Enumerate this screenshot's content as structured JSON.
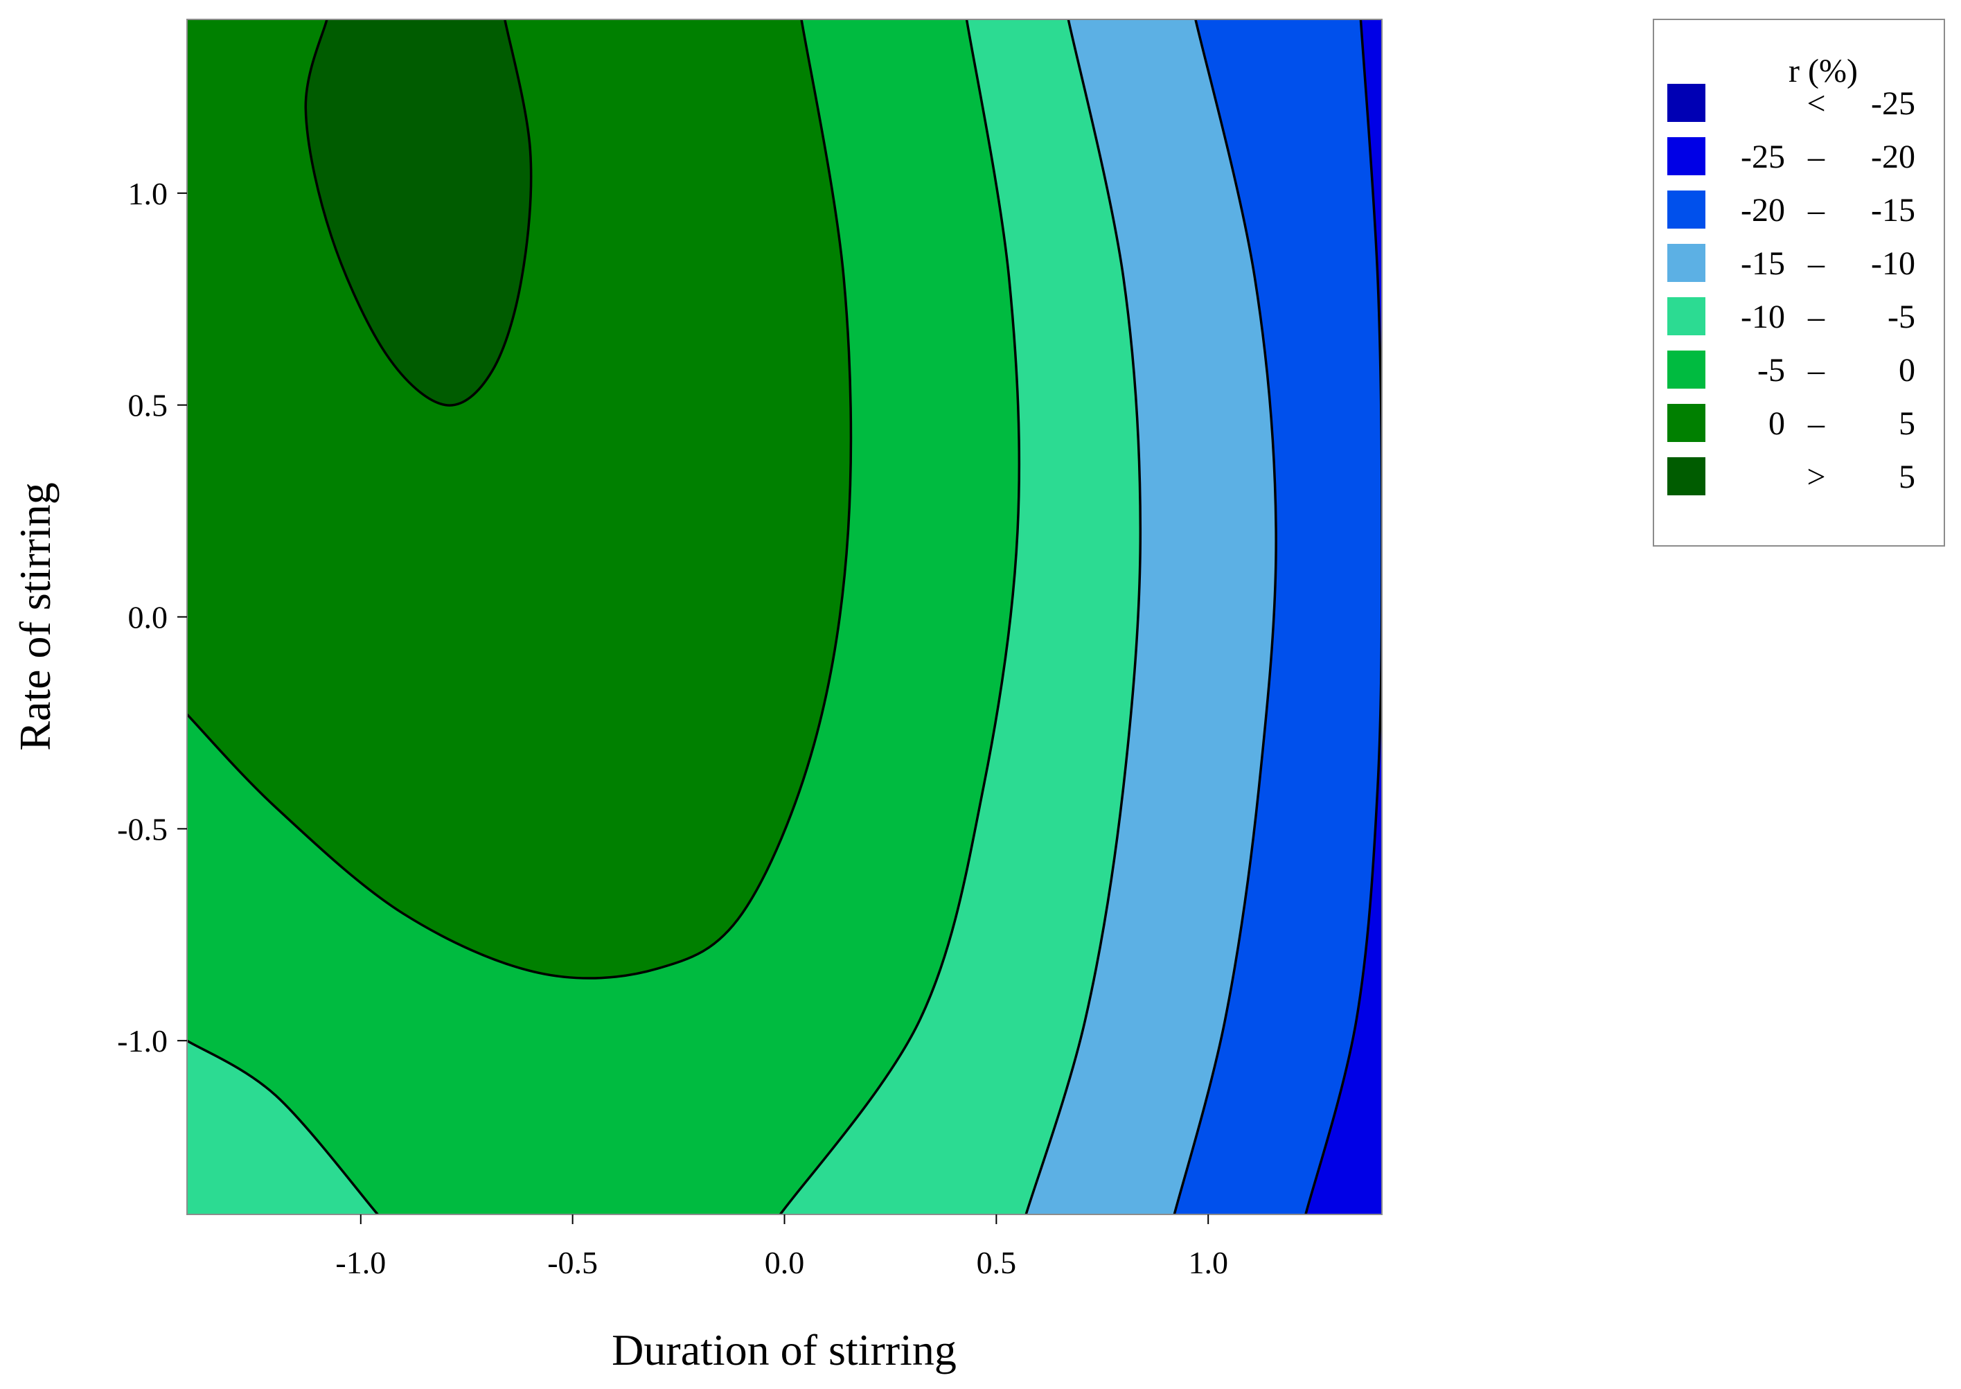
{
  "chart_data": {
    "type": "contour",
    "title": "",
    "xlabel": "Duration of stirring",
    "ylabel": "Rate of stirring",
    "xlim": [
      -1.41,
      1.41
    ],
    "ylim": [
      -1.41,
      1.41
    ],
    "xticks": [
      "-1.0",
      "-0.5",
      "0.0",
      "0.5",
      "1.0"
    ],
    "xtick_values": [
      -1.0,
      -0.5,
      0.0,
      0.5,
      1.0
    ],
    "yticks": [
      "-1.0",
      "-0.5",
      "0.0",
      "0.5",
      "1.0"
    ],
    "ytick_values": [
      -1.0,
      -0.5,
      0.0,
      0.5,
      1.0
    ],
    "legend": {
      "title": "r (%)",
      "placement": "top-right",
      "entries": [
        {
          "label": "<",
          "low": "",
          "high": "-25",
          "color": "#0000b4"
        },
        {
          "label": "–",
          "low": "-25",
          "high": "-20",
          "color": "#0000e6"
        },
        {
          "label": "–",
          "low": "-20",
          "high": "-15",
          "color": "#0050ec"
        },
        {
          "label": "–",
          "low": "-15",
          "high": "-10",
          "color": "#5cb0e4"
        },
        {
          "label": "–",
          "low": "-10",
          "high": "-5",
          "color": "#2cdb92"
        },
        {
          "label": "–",
          "low": "-5",
          "high": "0",
          "color": "#00bb40"
        },
        {
          "label": "–",
          "low": "0",
          "high": "5",
          "color": "#008000"
        },
        {
          "label": ">",
          "low": "",
          "high": "5",
          "color": "#005c00"
        }
      ]
    },
    "contour_levels": [
      -25,
      -20,
      -15,
      -10,
      -5,
      0,
      5
    ],
    "level_curves": [
      {
        "level": -20,
        "points": [
          [
            1.36,
            1.41
          ],
          [
            1.4,
            0.8
          ],
          [
            1.41,
            0.2
          ],
          [
            1.4,
            -0.4
          ],
          [
            1.35,
            -0.95
          ],
          [
            1.23,
            -1.41
          ]
        ]
      },
      {
        "level": -15,
        "points": [
          [
            0.97,
            1.41
          ],
          [
            1.11,
            0.8
          ],
          [
            1.16,
            0.2
          ],
          [
            1.12,
            -0.4
          ],
          [
            1.04,
            -0.95
          ],
          [
            0.92,
            -1.41
          ]
        ]
      },
      {
        "level": -10,
        "points": [
          [
            0.67,
            1.41
          ],
          [
            0.8,
            0.8
          ],
          [
            0.84,
            0.2
          ],
          [
            0.8,
            -0.4
          ],
          [
            0.71,
            -0.95
          ],
          [
            0.57,
            -1.41
          ]
        ]
      },
      {
        "level": -5,
        "points": [
          [
            0.43,
            1.41
          ],
          [
            0.53,
            0.8
          ],
          [
            0.55,
            0.2
          ],
          [
            0.47,
            -0.4
          ],
          [
            0.32,
            -0.95
          ],
          [
            -0.01,
            -1.41
          ]
        ]
      },
      {
        "level": -5,
        "points": [
          [
            -1.41,
            -1.0
          ],
          [
            -1.2,
            -1.13
          ],
          [
            -0.96,
            -1.41
          ]
        ]
      },
      {
        "level": 0,
        "points": [
          [
            0.04,
            1.41
          ],
          [
            0.14,
            0.8
          ],
          [
            0.15,
            0.2
          ],
          [
            0.07,
            -0.3
          ],
          [
            -0.1,
            -0.7
          ],
          [
            -0.3,
            -0.83
          ],
          [
            -0.58,
            -0.84
          ],
          [
            -0.9,
            -0.7
          ],
          [
            -1.2,
            -0.45
          ],
          [
            -1.41,
            -0.23
          ]
        ]
      },
      {
        "level": 5,
        "points": [
          [
            -1.08,
            1.41
          ],
          [
            -1.13,
            1.2
          ],
          [
            -1.07,
            0.9
          ],
          [
            -0.94,
            0.62
          ],
          [
            -0.8,
            0.5
          ],
          [
            -0.69,
            0.58
          ],
          [
            -0.62,
            0.8
          ],
          [
            -0.6,
            1.1
          ],
          [
            -0.66,
            1.41
          ]
        ]
      }
    ]
  }
}
